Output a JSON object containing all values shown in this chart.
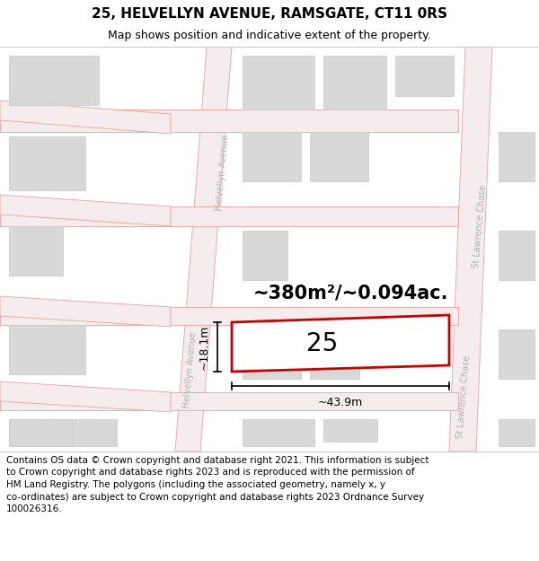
{
  "title_line1": "25, HELVELLYN AVENUE, RAMSGATE, CT11 0RS",
  "title_line2": "Map shows position and indicative extent of the property.",
  "footer_line1": "Contains OS data © Crown copyright and database right 2021. This information is subject",
  "footer_line2": "to Crown copyright and database rights 2023 and is reproduced with the permission of",
  "footer_line3": "HM Land Registry. The polygons (including the associated geometry, namely x, y",
  "footer_line4": "co-ordinates) are subject to Crown copyright and database rights 2023 Ordnance Survey",
  "footer_line5": "100026316.",
  "map_bg": "#ffffff",
  "road_line_color": "#e8a0a0",
  "block_fill": "#d8d8d8",
  "block_edge": "#c8c8c8",
  "highlight_fill": "#ffffff",
  "highlight_outline": "#cc0000",
  "measurement_color": "#000000",
  "area_text": "~380m²/~0.094ac.",
  "plot_label": "25",
  "width_label": "~43.9m",
  "height_label": "~18.1m",
  "title_fontsize": 11,
  "subtitle_fontsize": 9,
  "footer_fontsize": 7.5,
  "label_fontsize": 20,
  "area_fontsize": 15,
  "road_label_color": "#b0b0b0",
  "road_label_size": 7
}
